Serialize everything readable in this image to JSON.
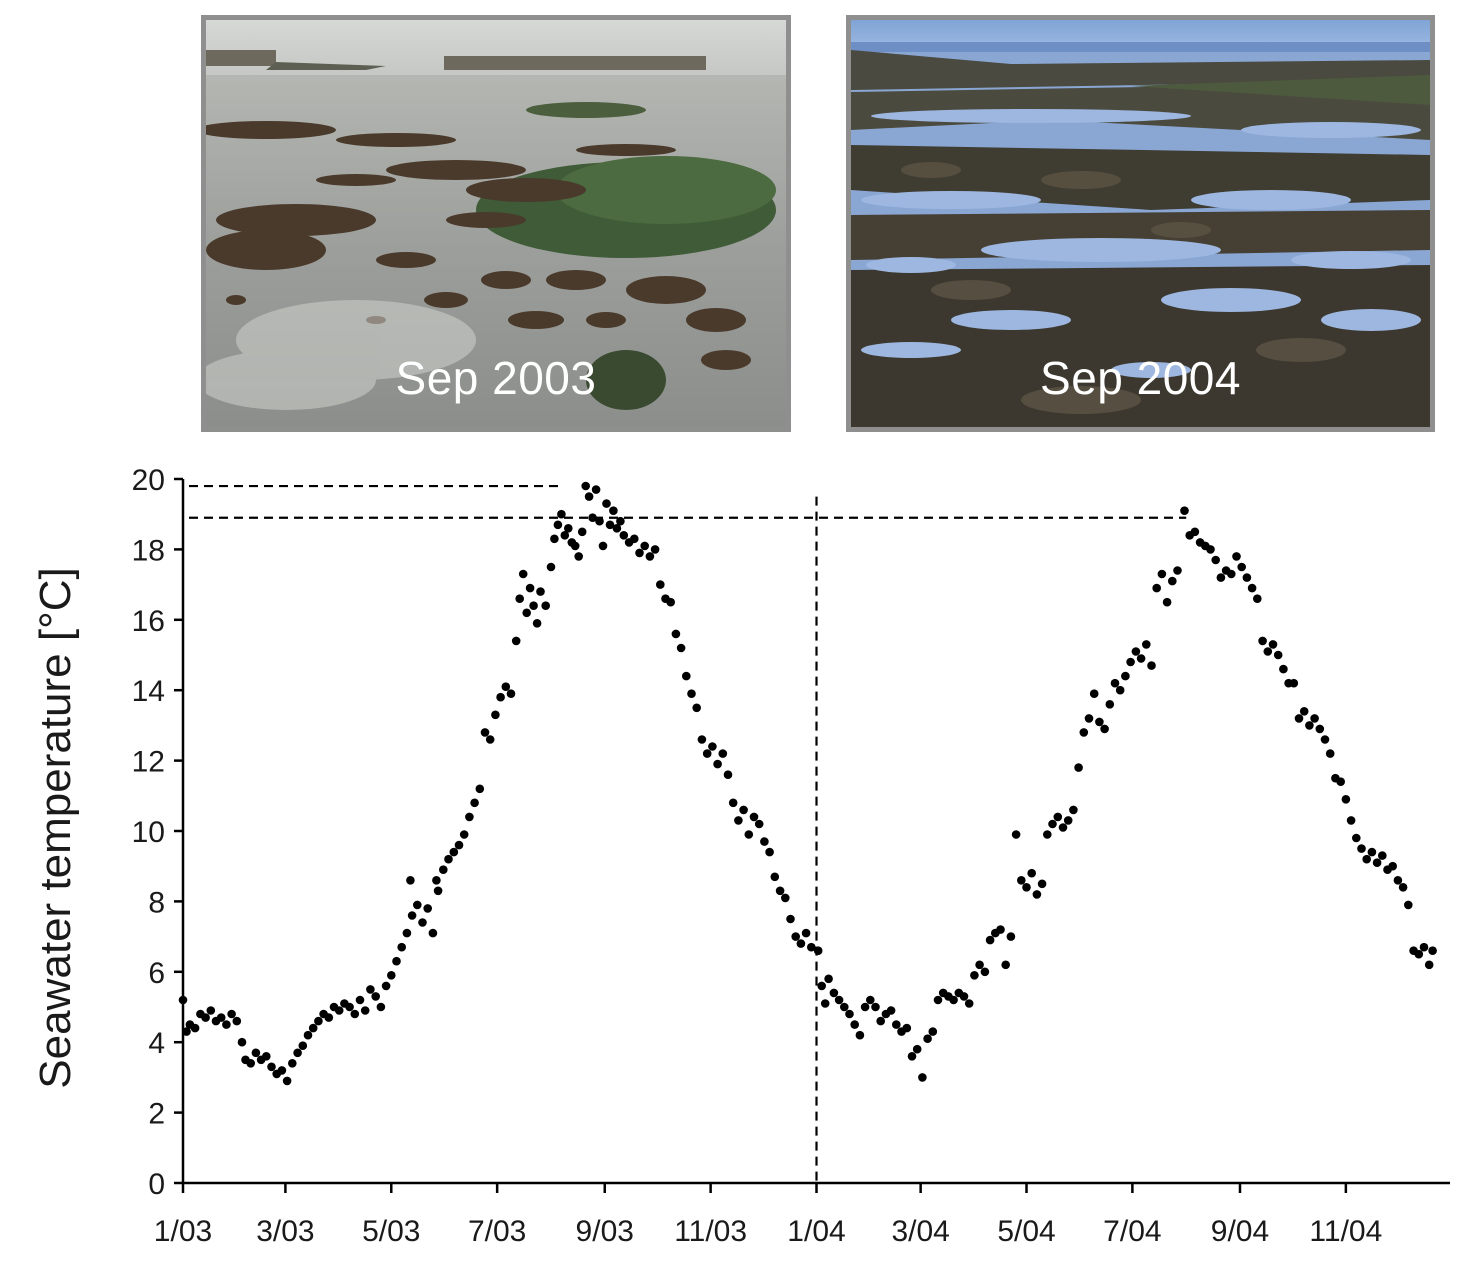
{
  "photos": [
    {
      "caption": "Sep 2003"
    },
    {
      "caption": "Sep 2004"
    }
  ],
  "colors": {
    "points": "#000000",
    "axis": "#000000",
    "photo_border": "#8f8f8f",
    "caption": "#ffffff"
  },
  "chart_data": {
    "type": "scatter",
    "title": "",
    "xlabel": "",
    "ylabel": "Seawater temperature [°C]",
    "ylim": [
      0,
      20
    ],
    "yticks": [
      0,
      2,
      4,
      6,
      8,
      10,
      12,
      14,
      16,
      18,
      20
    ],
    "xlim": [
      "2003-01-01",
      "2004-12-31"
    ],
    "xticks": [
      {
        "date": "2003-01-01",
        "label": "1/03"
      },
      {
        "date": "2003-03-01",
        "label": "3/03"
      },
      {
        "date": "2003-05-01",
        "label": "5/03"
      },
      {
        "date": "2003-07-01",
        "label": "7/03"
      },
      {
        "date": "2003-09-01",
        "label": "9/03"
      },
      {
        "date": "2003-11-01",
        "label": "11/03"
      },
      {
        "date": "2004-01-01",
        "label": "1/04"
      },
      {
        "date": "2004-03-01",
        "label": "3/04"
      },
      {
        "date": "2004-05-01",
        "label": "5/04"
      },
      {
        "date": "2004-07-01",
        "label": "7/04"
      },
      {
        "date": "2004-09-01",
        "label": "9/04"
      },
      {
        "date": "2004-11-01",
        "label": "11/04"
      }
    ],
    "reference_lines": [
      {
        "orientation": "horizontal",
        "y": 19.8,
        "from": "2003-01-01",
        "to": "2003-08-08",
        "style": "dashed"
      },
      {
        "orientation": "horizontal",
        "y": 18.9,
        "from": "2003-01-01",
        "to": "2004-08-01",
        "style": "dashed"
      },
      {
        "orientation": "vertical",
        "x": "2004-01-01",
        "y_to": 19.5,
        "style": "dashed"
      }
    ],
    "grid": false,
    "legend": "none",
    "series": [
      {
        "points": [
          [
            "2003-01-01",
            5.2
          ],
          [
            "2003-01-03",
            4.3
          ],
          [
            "2003-01-05",
            4.5
          ],
          [
            "2003-01-08",
            4.4
          ],
          [
            "2003-01-11",
            4.8
          ],
          [
            "2003-01-14",
            4.7
          ],
          [
            "2003-01-17",
            4.9
          ],
          [
            "2003-01-20",
            4.6
          ],
          [
            "2003-01-23",
            4.7
          ],
          [
            "2003-01-26",
            4.5
          ],
          [
            "2003-01-29",
            4.8
          ],
          [
            "2003-02-01",
            4.6
          ],
          [
            "2003-02-04",
            4.0
          ],
          [
            "2003-02-06",
            3.5
          ],
          [
            "2003-02-09",
            3.4
          ],
          [
            "2003-02-12",
            3.7
          ],
          [
            "2003-02-15",
            3.5
          ],
          [
            "2003-02-18",
            3.6
          ],
          [
            "2003-02-21",
            3.3
          ],
          [
            "2003-02-24",
            3.1
          ],
          [
            "2003-02-27",
            3.2
          ],
          [
            "2003-03-02",
            2.9
          ],
          [
            "2003-03-05",
            3.4
          ],
          [
            "2003-03-08",
            3.7
          ],
          [
            "2003-03-11",
            3.9
          ],
          [
            "2003-03-14",
            4.2
          ],
          [
            "2003-03-17",
            4.4
          ],
          [
            "2003-03-20",
            4.6
          ],
          [
            "2003-03-23",
            4.8
          ],
          [
            "2003-03-26",
            4.7
          ],
          [
            "2003-03-29",
            5.0
          ],
          [
            "2003-04-01",
            4.9
          ],
          [
            "2003-04-04",
            5.1
          ],
          [
            "2003-04-07",
            5.0
          ],
          [
            "2003-04-10",
            4.8
          ],
          [
            "2003-04-13",
            5.2
          ],
          [
            "2003-04-16",
            4.9
          ],
          [
            "2003-04-19",
            5.5
          ],
          [
            "2003-04-22",
            5.3
          ],
          [
            "2003-04-25",
            5.0
          ],
          [
            "2003-04-28",
            5.6
          ],
          [
            "2003-05-01",
            5.9
          ],
          [
            "2003-05-04",
            6.3
          ],
          [
            "2003-05-07",
            6.7
          ],
          [
            "2003-05-10",
            7.1
          ],
          [
            "2003-05-12",
            8.6
          ],
          [
            "2003-05-13",
            7.6
          ],
          [
            "2003-05-16",
            7.9
          ],
          [
            "2003-05-19",
            7.4
          ],
          [
            "2003-05-22",
            7.8
          ],
          [
            "2003-05-25",
            7.1
          ],
          [
            "2003-05-27",
            8.6
          ],
          [
            "2003-05-28",
            8.3
          ],
          [
            "2003-05-31",
            8.9
          ],
          [
            "2003-06-03",
            9.2
          ],
          [
            "2003-06-06",
            9.4
          ],
          [
            "2003-06-09",
            9.6
          ],
          [
            "2003-06-12",
            9.9
          ],
          [
            "2003-06-15",
            10.4
          ],
          [
            "2003-06-18",
            10.8
          ],
          [
            "2003-06-21",
            11.2
          ],
          [
            "2003-06-24",
            12.8
          ],
          [
            "2003-06-27",
            12.6
          ],
          [
            "2003-06-30",
            13.3
          ],
          [
            "2003-07-03",
            13.8
          ],
          [
            "2003-07-06",
            14.1
          ],
          [
            "2003-07-09",
            13.9
          ],
          [
            "2003-07-12",
            15.4
          ],
          [
            "2003-07-14",
            16.6
          ],
          [
            "2003-07-16",
            17.3
          ],
          [
            "2003-07-18",
            16.2
          ],
          [
            "2003-07-20",
            16.9
          ],
          [
            "2003-07-22",
            16.4
          ],
          [
            "2003-07-24",
            15.9
          ],
          [
            "2003-07-26",
            16.8
          ],
          [
            "2003-07-29",
            16.4
          ],
          [
            "2003-08-01",
            17.5
          ],
          [
            "2003-08-03",
            18.3
          ],
          [
            "2003-08-05",
            18.7
          ],
          [
            "2003-08-07",
            19.0
          ],
          [
            "2003-08-09",
            18.4
          ],
          [
            "2003-08-11",
            18.6
          ],
          [
            "2003-08-13",
            18.2
          ],
          [
            "2003-08-15",
            18.1
          ],
          [
            "2003-08-17",
            17.8
          ],
          [
            "2003-08-19",
            18.5
          ],
          [
            "2003-08-21",
            19.8
          ],
          [
            "2003-08-23",
            19.5
          ],
          [
            "2003-08-25",
            18.9
          ],
          [
            "2003-08-27",
            19.7
          ],
          [
            "2003-08-29",
            18.8
          ],
          [
            "2003-08-31",
            18.1
          ],
          [
            "2003-09-02",
            19.3
          ],
          [
            "2003-09-04",
            18.7
          ],
          [
            "2003-09-06",
            19.1
          ],
          [
            "2003-09-08",
            18.6
          ],
          [
            "2003-09-10",
            18.8
          ],
          [
            "2003-09-12",
            18.4
          ],
          [
            "2003-09-15",
            18.2
          ],
          [
            "2003-09-18",
            18.3
          ],
          [
            "2003-09-21",
            17.9
          ],
          [
            "2003-09-24",
            18.1
          ],
          [
            "2003-09-27",
            17.8
          ],
          [
            "2003-09-30",
            18.0
          ],
          [
            "2003-10-03",
            17.0
          ],
          [
            "2003-10-06",
            16.6
          ],
          [
            "2003-10-09",
            16.5
          ],
          [
            "2003-10-12",
            15.6
          ],
          [
            "2003-10-15",
            15.2
          ],
          [
            "2003-10-18",
            14.4
          ],
          [
            "2003-10-21",
            13.9
          ],
          [
            "2003-10-24",
            13.5
          ],
          [
            "2003-10-27",
            12.6
          ],
          [
            "2003-10-30",
            12.2
          ],
          [
            "2003-11-02",
            12.4
          ],
          [
            "2003-11-05",
            11.9
          ],
          [
            "2003-11-08",
            12.2
          ],
          [
            "2003-11-11",
            11.6
          ],
          [
            "2003-11-14",
            10.8
          ],
          [
            "2003-11-17",
            10.3
          ],
          [
            "2003-11-20",
            10.6
          ],
          [
            "2003-11-23",
            9.9
          ],
          [
            "2003-11-26",
            10.4
          ],
          [
            "2003-11-29",
            10.2
          ],
          [
            "2003-12-02",
            9.7
          ],
          [
            "2003-12-05",
            9.4
          ],
          [
            "2003-12-08",
            8.7
          ],
          [
            "2003-12-11",
            8.3
          ],
          [
            "2003-12-14",
            8.1
          ],
          [
            "2003-12-17",
            7.5
          ],
          [
            "2003-12-20",
            7.0
          ],
          [
            "2003-12-23",
            6.8
          ],
          [
            "2003-12-26",
            7.1
          ],
          [
            "2003-12-29",
            6.7
          ],
          [
            "2004-01-02",
            6.6
          ],
          [
            "2004-01-04",
            5.6
          ],
          [
            "2004-01-06",
            5.1
          ],
          [
            "2004-01-08",
            5.8
          ],
          [
            "2004-01-11",
            5.4
          ],
          [
            "2004-01-14",
            5.2
          ],
          [
            "2004-01-17",
            5.0
          ],
          [
            "2004-01-20",
            4.8
          ],
          [
            "2004-01-23",
            4.5
          ],
          [
            "2004-01-26",
            4.2
          ],
          [
            "2004-01-29",
            5.0
          ],
          [
            "2004-02-01",
            5.2
          ],
          [
            "2004-02-04",
            5.0
          ],
          [
            "2004-02-07",
            4.6
          ],
          [
            "2004-02-10",
            4.8
          ],
          [
            "2004-02-13",
            4.9
          ],
          [
            "2004-02-16",
            4.5
          ],
          [
            "2004-02-19",
            4.3
          ],
          [
            "2004-02-22",
            4.4
          ],
          [
            "2004-02-25",
            3.6
          ],
          [
            "2004-02-28",
            3.8
          ],
          [
            "2004-03-02",
            3.0
          ],
          [
            "2004-03-05",
            4.1
          ],
          [
            "2004-03-08",
            4.3
          ],
          [
            "2004-03-11",
            5.2
          ],
          [
            "2004-03-14",
            5.4
          ],
          [
            "2004-03-17",
            5.3
          ],
          [
            "2004-03-20",
            5.2
          ],
          [
            "2004-03-23",
            5.4
          ],
          [
            "2004-03-26",
            5.3
          ],
          [
            "2004-03-29",
            5.1
          ],
          [
            "2004-04-01",
            5.9
          ],
          [
            "2004-04-04",
            6.2
          ],
          [
            "2004-04-07",
            6.0
          ],
          [
            "2004-04-10",
            6.9
          ],
          [
            "2004-04-13",
            7.1
          ],
          [
            "2004-04-16",
            7.2
          ],
          [
            "2004-04-19",
            6.2
          ],
          [
            "2004-04-22",
            7.0
          ],
          [
            "2004-04-25",
            9.9
          ],
          [
            "2004-04-28",
            8.6
          ],
          [
            "2004-05-01",
            8.4
          ],
          [
            "2004-05-04",
            8.8
          ],
          [
            "2004-05-07",
            8.2
          ],
          [
            "2004-05-10",
            8.5
          ],
          [
            "2004-05-13",
            9.9
          ],
          [
            "2004-05-16",
            10.2
          ],
          [
            "2004-05-19",
            10.4
          ],
          [
            "2004-05-22",
            10.1
          ],
          [
            "2004-05-25",
            10.3
          ],
          [
            "2004-05-28",
            10.6
          ],
          [
            "2004-05-31",
            11.8
          ],
          [
            "2004-06-03",
            12.8
          ],
          [
            "2004-06-06",
            13.2
          ],
          [
            "2004-06-09",
            13.9
          ],
          [
            "2004-06-12",
            13.1
          ],
          [
            "2004-06-15",
            12.9
          ],
          [
            "2004-06-18",
            13.6
          ],
          [
            "2004-06-21",
            14.2
          ],
          [
            "2004-06-24",
            14.0
          ],
          [
            "2004-06-27",
            14.4
          ],
          [
            "2004-06-30",
            14.8
          ],
          [
            "2004-07-03",
            15.1
          ],
          [
            "2004-07-06",
            14.9
          ],
          [
            "2004-07-09",
            15.3
          ],
          [
            "2004-07-12",
            14.7
          ],
          [
            "2004-07-15",
            16.9
          ],
          [
            "2004-07-18",
            17.3
          ],
          [
            "2004-07-21",
            16.5
          ],
          [
            "2004-07-24",
            17.1
          ],
          [
            "2004-07-27",
            17.4
          ],
          [
            "2004-07-31",
            19.1
          ],
          [
            "2004-08-03",
            18.4
          ],
          [
            "2004-08-06",
            18.5
          ],
          [
            "2004-08-09",
            18.2
          ],
          [
            "2004-08-12",
            18.1
          ],
          [
            "2004-08-15",
            18.0
          ],
          [
            "2004-08-18",
            17.7
          ],
          [
            "2004-08-21",
            17.2
          ],
          [
            "2004-08-24",
            17.4
          ],
          [
            "2004-08-27",
            17.3
          ],
          [
            "2004-08-30",
            17.8
          ],
          [
            "2004-09-02",
            17.5
          ],
          [
            "2004-09-05",
            17.2
          ],
          [
            "2004-09-08",
            16.9
          ],
          [
            "2004-09-11",
            16.6
          ],
          [
            "2004-09-14",
            15.4
          ],
          [
            "2004-09-17",
            15.1
          ],
          [
            "2004-09-20",
            15.3
          ],
          [
            "2004-09-23",
            15.0
          ],
          [
            "2004-09-26",
            14.6
          ],
          [
            "2004-09-29",
            14.2
          ],
          [
            "2004-10-02",
            14.2
          ],
          [
            "2004-10-05",
            13.2
          ],
          [
            "2004-10-08",
            13.4
          ],
          [
            "2004-10-11",
            13.0
          ],
          [
            "2004-10-14",
            13.2
          ],
          [
            "2004-10-17",
            12.9
          ],
          [
            "2004-10-20",
            12.6
          ],
          [
            "2004-10-23",
            12.2
          ],
          [
            "2004-10-26",
            11.5
          ],
          [
            "2004-10-29",
            11.4
          ],
          [
            "2004-11-01",
            10.9
          ],
          [
            "2004-11-04",
            10.3
          ],
          [
            "2004-11-07",
            9.8
          ],
          [
            "2004-11-10",
            9.5
          ],
          [
            "2004-11-13",
            9.2
          ],
          [
            "2004-11-16",
            9.4
          ],
          [
            "2004-11-19",
            9.1
          ],
          [
            "2004-11-22",
            9.3
          ],
          [
            "2004-11-25",
            8.9
          ],
          [
            "2004-11-28",
            9.0
          ],
          [
            "2004-12-01",
            8.6
          ],
          [
            "2004-12-04",
            8.4
          ],
          [
            "2004-12-07",
            7.9
          ],
          [
            "2004-12-10",
            6.6
          ],
          [
            "2004-12-13",
            6.5
          ],
          [
            "2004-12-16",
            6.7
          ],
          [
            "2004-12-19",
            6.2
          ],
          [
            "2004-12-21",
            6.6
          ]
        ]
      }
    ]
  }
}
